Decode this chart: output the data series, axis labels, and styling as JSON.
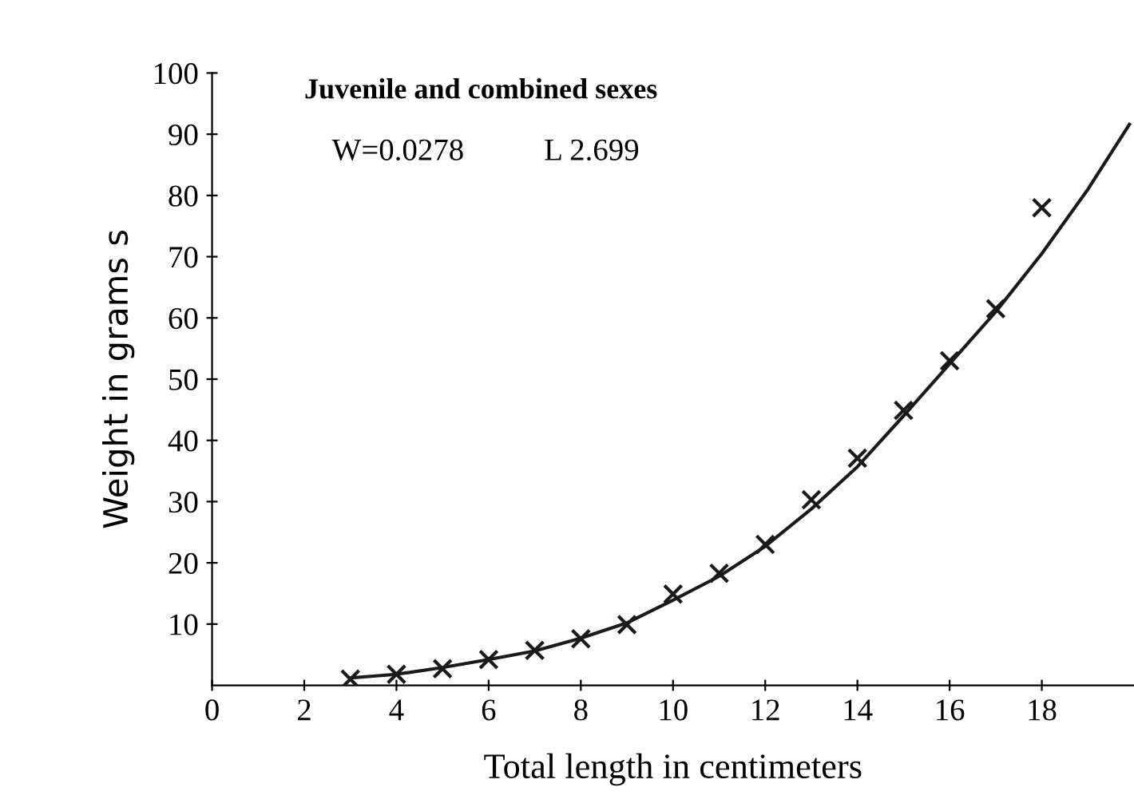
{
  "chart_data": {
    "type": "scatter",
    "xlabel": "Total length in centimeters",
    "ylabel": "Weight in grams s",
    "annotations": [
      "Juvenile and combined sexes",
      "W=0.0278",
      "L 2.699"
    ],
    "xlim": [
      0,
      20
    ],
    "ylim": [
      0,
      100
    ],
    "xticks": [
      0,
      2,
      4,
      6,
      8,
      10,
      12,
      14,
      16,
      18
    ],
    "yticks": [
      10,
      20,
      30,
      40,
      50,
      60,
      70,
      80,
      90,
      100
    ],
    "grid": false,
    "legend": false,
    "series": [
      {
        "marker": "cross",
        "color": "#1a1a1a",
        "x": [
          3,
          4,
          5,
          6,
          7,
          8,
          9,
          10,
          11,
          12,
          13,
          14,
          15,
          16,
          17,
          18
        ],
        "values": [
          1.0,
          1.8,
          2.7,
          4.2,
          5.7,
          7.6,
          9.9,
          14.9,
          18.3,
          23,
          30.3,
          37.1,
          44.9,
          53,
          61.5,
          78
        ]
      },
      {
        "type": "line",
        "color": "#1a1a1a",
        "x": [
          3,
          4,
          5,
          6,
          7,
          8,
          9,
          10,
          11,
          12,
          13,
          14,
          15,
          16,
          17,
          18,
          19,
          19.9
        ],
        "values": [
          1.2,
          1.8,
          2.9,
          4.2,
          5.6,
          7.7,
          10.2,
          13.9,
          17.8,
          22.7,
          28.8,
          35.7,
          44,
          52.5,
          61,
          70.5,
          81,
          91.6
        ]
      }
    ]
  }
}
